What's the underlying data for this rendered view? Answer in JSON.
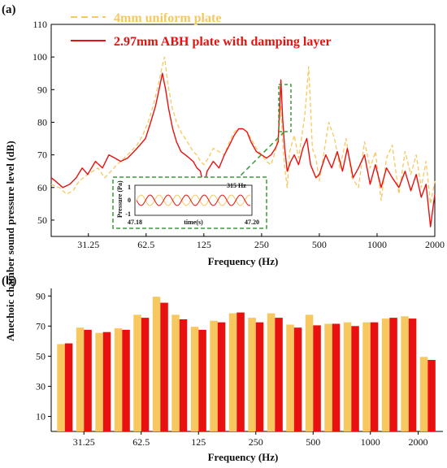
{
  "colors": {
    "uniform": "#F6C85F",
    "abh": "#E8110F",
    "inset_border": "#3B9B3B"
  },
  "y_axis_title": "Anechoic chamber sound pressure level (dB)",
  "chart_data": [
    {
      "panel_label": "(a)",
      "type": "line",
      "xlabel": "Frequency (Hz)",
      "x_scale": "log",
      "xlim": [
        20,
        2000
      ],
      "x_ticks": [
        "31.25",
        "62.5",
        "125",
        "250",
        "500",
        "1000",
        "2000"
      ],
      "ylim": [
        45,
        110
      ],
      "y_ticks": [
        "50",
        "60",
        "70",
        "80",
        "90",
        "100",
        "110"
      ],
      "series": [
        {
          "name": "4mm uniform plate",
          "style": "dashed",
          "color": "#F6C85F",
          "points": [
            [
              20,
              61
            ],
            [
              22,
              60
            ],
            [
              24,
              58
            ],
            [
              26,
              59
            ],
            [
              28,
              62
            ],
            [
              31,
              64
            ],
            [
              35,
              66
            ],
            [
              38,
              63
            ],
            [
              41,
              65
            ],
            [
              44,
              67
            ],
            [
              48,
              69
            ],
            [
              52,
              71
            ],
            [
              56,
              73
            ],
            [
              60,
              76
            ],
            [
              64,
              80
            ],
            [
              68,
              85
            ],
            [
              72,
              91
            ],
            [
              75,
              96
            ],
            [
              78,
              100
            ],
            [
              81,
              92
            ],
            [
              85,
              85
            ],
            [
              90,
              80
            ],
            [
              95,
              77
            ],
            [
              100,
              75
            ],
            [
              105,
              73
            ],
            [
              110,
              71
            ],
            [
              115,
              70
            ],
            [
              120,
              68
            ],
            [
              125,
              67
            ],
            [
              132,
              69
            ],
            [
              140,
              72
            ],
            [
              150,
              71
            ],
            [
              160,
              70
            ],
            [
              170,
              74
            ],
            [
              180,
              77
            ],
            [
              190,
              78
            ],
            [
              200,
              78
            ],
            [
              210,
              77
            ],
            [
              220,
              75
            ],
            [
              235,
              72
            ],
            [
              250,
              70
            ],
            [
              265,
              68
            ],
            [
              280,
              67
            ],
            [
              295,
              71
            ],
            [
              305,
              76
            ],
            [
              315,
              85
            ],
            [
              322,
              74
            ],
            [
              330,
              66
            ],
            [
              340,
              60
            ],
            [
              350,
              71
            ],
            [
              370,
              76
            ],
            [
              390,
              69
            ],
            [
              420,
              82
            ],
            [
              440,
              97
            ],
            [
              460,
              72
            ],
            [
              480,
              69
            ],
            [
              500,
              62
            ],
            [
              520,
              68
            ],
            [
              560,
              80
            ],
            [
              600,
              75
            ],
            [
              640,
              66
            ],
            [
              690,
              75
            ],
            [
              740,
              63
            ],
            [
              800,
              60
            ],
            [
              860,
              74
            ],
            [
              920,
              66
            ],
            [
              980,
              71
            ],
            [
              1050,
              56
            ],
            [
              1120,
              69
            ],
            [
              1200,
              73
            ],
            [
              1300,
              58
            ],
            [
              1400,
              71
            ],
            [
              1500,
              64
            ],
            [
              1600,
              70
            ],
            [
              1700,
              60
            ],
            [
              1800,
              68
            ],
            [
              1900,
              55
            ],
            [
              2000,
              62
            ]
          ]
        },
        {
          "name": "2.97mm ABH plate with damping layer",
          "style": "solid",
          "color": "#E8110F",
          "points": [
            [
              20,
              63
            ],
            [
              21,
              62
            ],
            [
              23,
              60
            ],
            [
              25,
              61
            ],
            [
              27,
              63
            ],
            [
              29,
              66
            ],
            [
              31,
              64
            ],
            [
              34,
              68
            ],
            [
              37,
              66
            ],
            [
              40,
              70
            ],
            [
              43,
              69
            ],
            [
              46,
              68
            ],
            [
              50,
              69
            ],
            [
              54,
              71
            ],
            [
              58,
              73
            ],
            [
              62,
              75
            ],
            [
              66,
              80
            ],
            [
              70,
              85
            ],
            [
              73,
              90
            ],
            [
              76,
              95
            ],
            [
              79,
              90
            ],
            [
              82,
              84
            ],
            [
              86,
              78
            ],
            [
              90,
              74
            ],
            [
              95,
              71
            ],
            [
              100,
              70
            ],
            [
              105,
              69
            ],
            [
              110,
              68
            ],
            [
              115,
              66
            ],
            [
              120,
              65
            ],
            [
              125,
              60
            ],
            [
              130,
              65
            ],
            [
              140,
              68
            ],
            [
              150,
              66
            ],
            [
              160,
              70
            ],
            [
              170,
              73
            ],
            [
              180,
              76
            ],
            [
              190,
              78
            ],
            [
              200,
              78
            ],
            [
              210,
              77
            ],
            [
              220,
              74
            ],
            [
              235,
              71
            ],
            [
              250,
              70
            ],
            [
              265,
              69
            ],
            [
              280,
              70
            ],
            [
              295,
              72
            ],
            [
              305,
              74
            ],
            [
              315,
              93
            ],
            [
              322,
              81
            ],
            [
              330,
              72
            ],
            [
              340,
              65
            ],
            [
              355,
              68
            ],
            [
              370,
              70
            ],
            [
              390,
              67
            ],
            [
              410,
              72
            ],
            [
              430,
              75
            ],
            [
              450,
              67
            ],
            [
              480,
              63
            ],
            [
              500,
              64
            ],
            [
              540,
              70
            ],
            [
              580,
              66
            ],
            [
              620,
              71
            ],
            [
              660,
              65
            ],
            [
              700,
              72
            ],
            [
              750,
              63
            ],
            [
              800,
              66
            ],
            [
              860,
              70
            ],
            [
              920,
              61
            ],
            [
              980,
              67
            ],
            [
              1050,
              60
            ],
            [
              1120,
              66
            ],
            [
              1200,
              63
            ],
            [
              1300,
              60
            ],
            [
              1400,
              65
            ],
            [
              1500,
              59
            ],
            [
              1600,
              64
            ],
            [
              1700,
              57
            ],
            [
              1800,
              61
            ],
            [
              1900,
              48
            ],
            [
              2000,
              58
            ]
          ]
        }
      ],
      "inset": {
        "frequency_label": "315 Hz",
        "ylabel": "Pressure (Pa)",
        "xlabel": "time(s)",
        "x_ticks": [
          "47.18",
          "47.20"
        ],
        "y_ticks": [
          "1",
          "0",
          "-1"
        ]
      }
    },
    {
      "panel_label": "(b)",
      "type": "bar",
      "xlabel": "Frequency (Hz)",
      "x_ticks": [
        "31.25",
        "62.5",
        "125",
        "250",
        "500",
        "1000",
        "2000"
      ],
      "ylim": [
        0,
        95
      ],
      "y_ticks": [
        "10",
        "30",
        "50",
        "70",
        "90"
      ],
      "bands": 20,
      "series": [
        {
          "name": "4mm uniform plate",
          "color": "#F6C85F",
          "values": [
            58,
            69,
            65.5,
            68.5,
            77.5,
            89.5,
            77.5,
            69.5,
            73.5,
            78.5,
            75.5,
            78.5,
            71,
            77.5,
            71.5,
            72.5,
            72.5,
            75,
            76.5,
            49.5
          ]
        },
        {
          "name": "2.97mm ABH plate with damping layer",
          "color": "#E8110F",
          "values": [
            58.5,
            67.5,
            66,
            67.5,
            75.5,
            85.5,
            74.5,
            67.5,
            72.5,
            79,
            72.5,
            75.5,
            69,
            70.5,
            71.5,
            70,
            72.5,
            75.5,
            75,
            47.5
          ]
        }
      ]
    }
  ]
}
